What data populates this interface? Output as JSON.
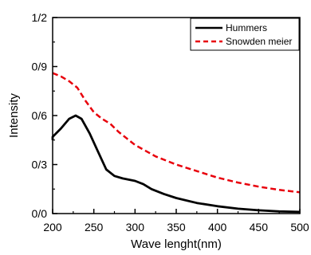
{
  "chart_data": {
    "type": "line",
    "title": "",
    "xlabel": "Wave lenght(nm)",
    "ylabel": "Intensity",
    "xlim": [
      200,
      500
    ],
    "ylim": [
      0,
      1.2
    ],
    "x_ticks": [
      200,
      250,
      300,
      350,
      400,
      450,
      500
    ],
    "y_ticks": [
      0,
      0.3,
      0.6,
      0.9,
      1.2
    ],
    "x_tick_labels": [
      "200",
      "250",
      "300",
      "350",
      "400",
      "450",
      "500"
    ],
    "y_tick_labels": [
      "0/0",
      "0/3",
      "0/6",
      "0/9",
      "1/2"
    ],
    "grid": false,
    "legend_position": "top-right",
    "series": [
      {
        "name": "Hummers",
        "color": "#000000",
        "style": "solid",
        "x": [
          195,
          200,
          210,
          220,
          228,
          235,
          245,
          255,
          265,
          275,
          285,
          300,
          310,
          320,
          335,
          350,
          375,
          400,
          425,
          450,
          475,
          500
        ],
        "y": [
          0.45,
          0.47,
          0.52,
          0.58,
          0.6,
          0.58,
          0.49,
          0.38,
          0.27,
          0.23,
          0.215,
          0.2,
          0.18,
          0.15,
          0.12,
          0.095,
          0.065,
          0.045,
          0.03,
          0.02,
          0.013,
          0.01
        ]
      },
      {
        "name": "Snowden meier",
        "color": "#e8000b",
        "style": "dashed",
        "x": [
          195,
          200,
          210,
          220,
          230,
          240,
          250,
          260,
          270,
          280,
          290,
          300,
          325,
          350,
          375,
          400,
          425,
          450,
          475,
          500
        ],
        "y": [
          0.86,
          0.86,
          0.84,
          0.81,
          0.77,
          0.69,
          0.62,
          0.58,
          0.55,
          0.5,
          0.46,
          0.42,
          0.35,
          0.3,
          0.26,
          0.22,
          0.19,
          0.165,
          0.145,
          0.13
        ]
      }
    ]
  }
}
